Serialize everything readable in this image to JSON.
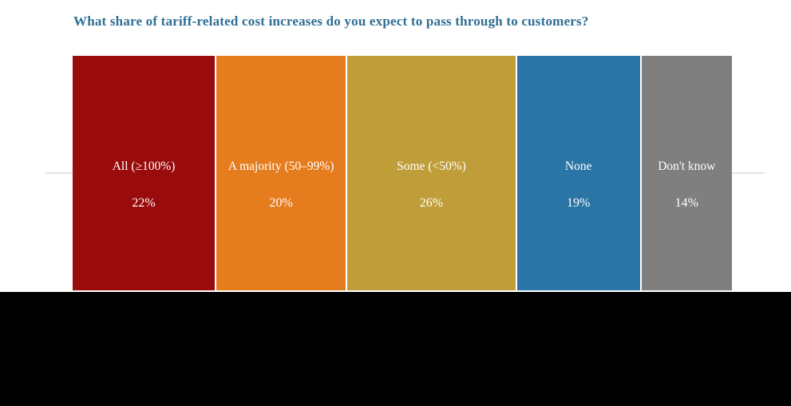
{
  "page": {
    "background": "#FFFFFF",
    "bottom_band_color": "#000000"
  },
  "header": {
    "title": "What share of tariff-related cost increases do you expect to pass through to customers?",
    "title_color": "#2E6E93"
  },
  "chart_data": {
    "type": "bar",
    "subtype": "horizontal-100pct-stacked-single-row",
    "title": "What share of tariff-related cost increases do you expect to pass through to customers?",
    "categories": [
      "All (≥100%)",
      "A majority (50–99%)",
      "Some (<50%)",
      "None",
      "Don't know"
    ],
    "values": [
      22,
      20,
      26,
      19,
      14
    ],
    "unit": "%",
    "legend": "none",
    "gridlines": false,
    "xlabel": "",
    "ylabel": "",
    "text_color": "#FFFFFF",
    "axis_line_color": "#E3E3E3",
    "segments": [
      {
        "label": "All (≥100%)",
        "value": 22,
        "value_label": "22%",
        "color": "#9A0B0C"
      },
      {
        "label": "A majority (50–99%)",
        "value": 20,
        "value_label": "20%",
        "color": "#E57D1F"
      },
      {
        "label": "Some (<50%)",
        "value": 26,
        "value_label": "26%",
        "color": "#BF9E3A"
      },
      {
        "label": "None",
        "value": 19,
        "value_label": "19%",
        "color": "#2B74A6"
      },
      {
        "label": "Don't know",
        "value": 14,
        "value_label": "14%",
        "color": "#7F7F7F"
      }
    ]
  }
}
